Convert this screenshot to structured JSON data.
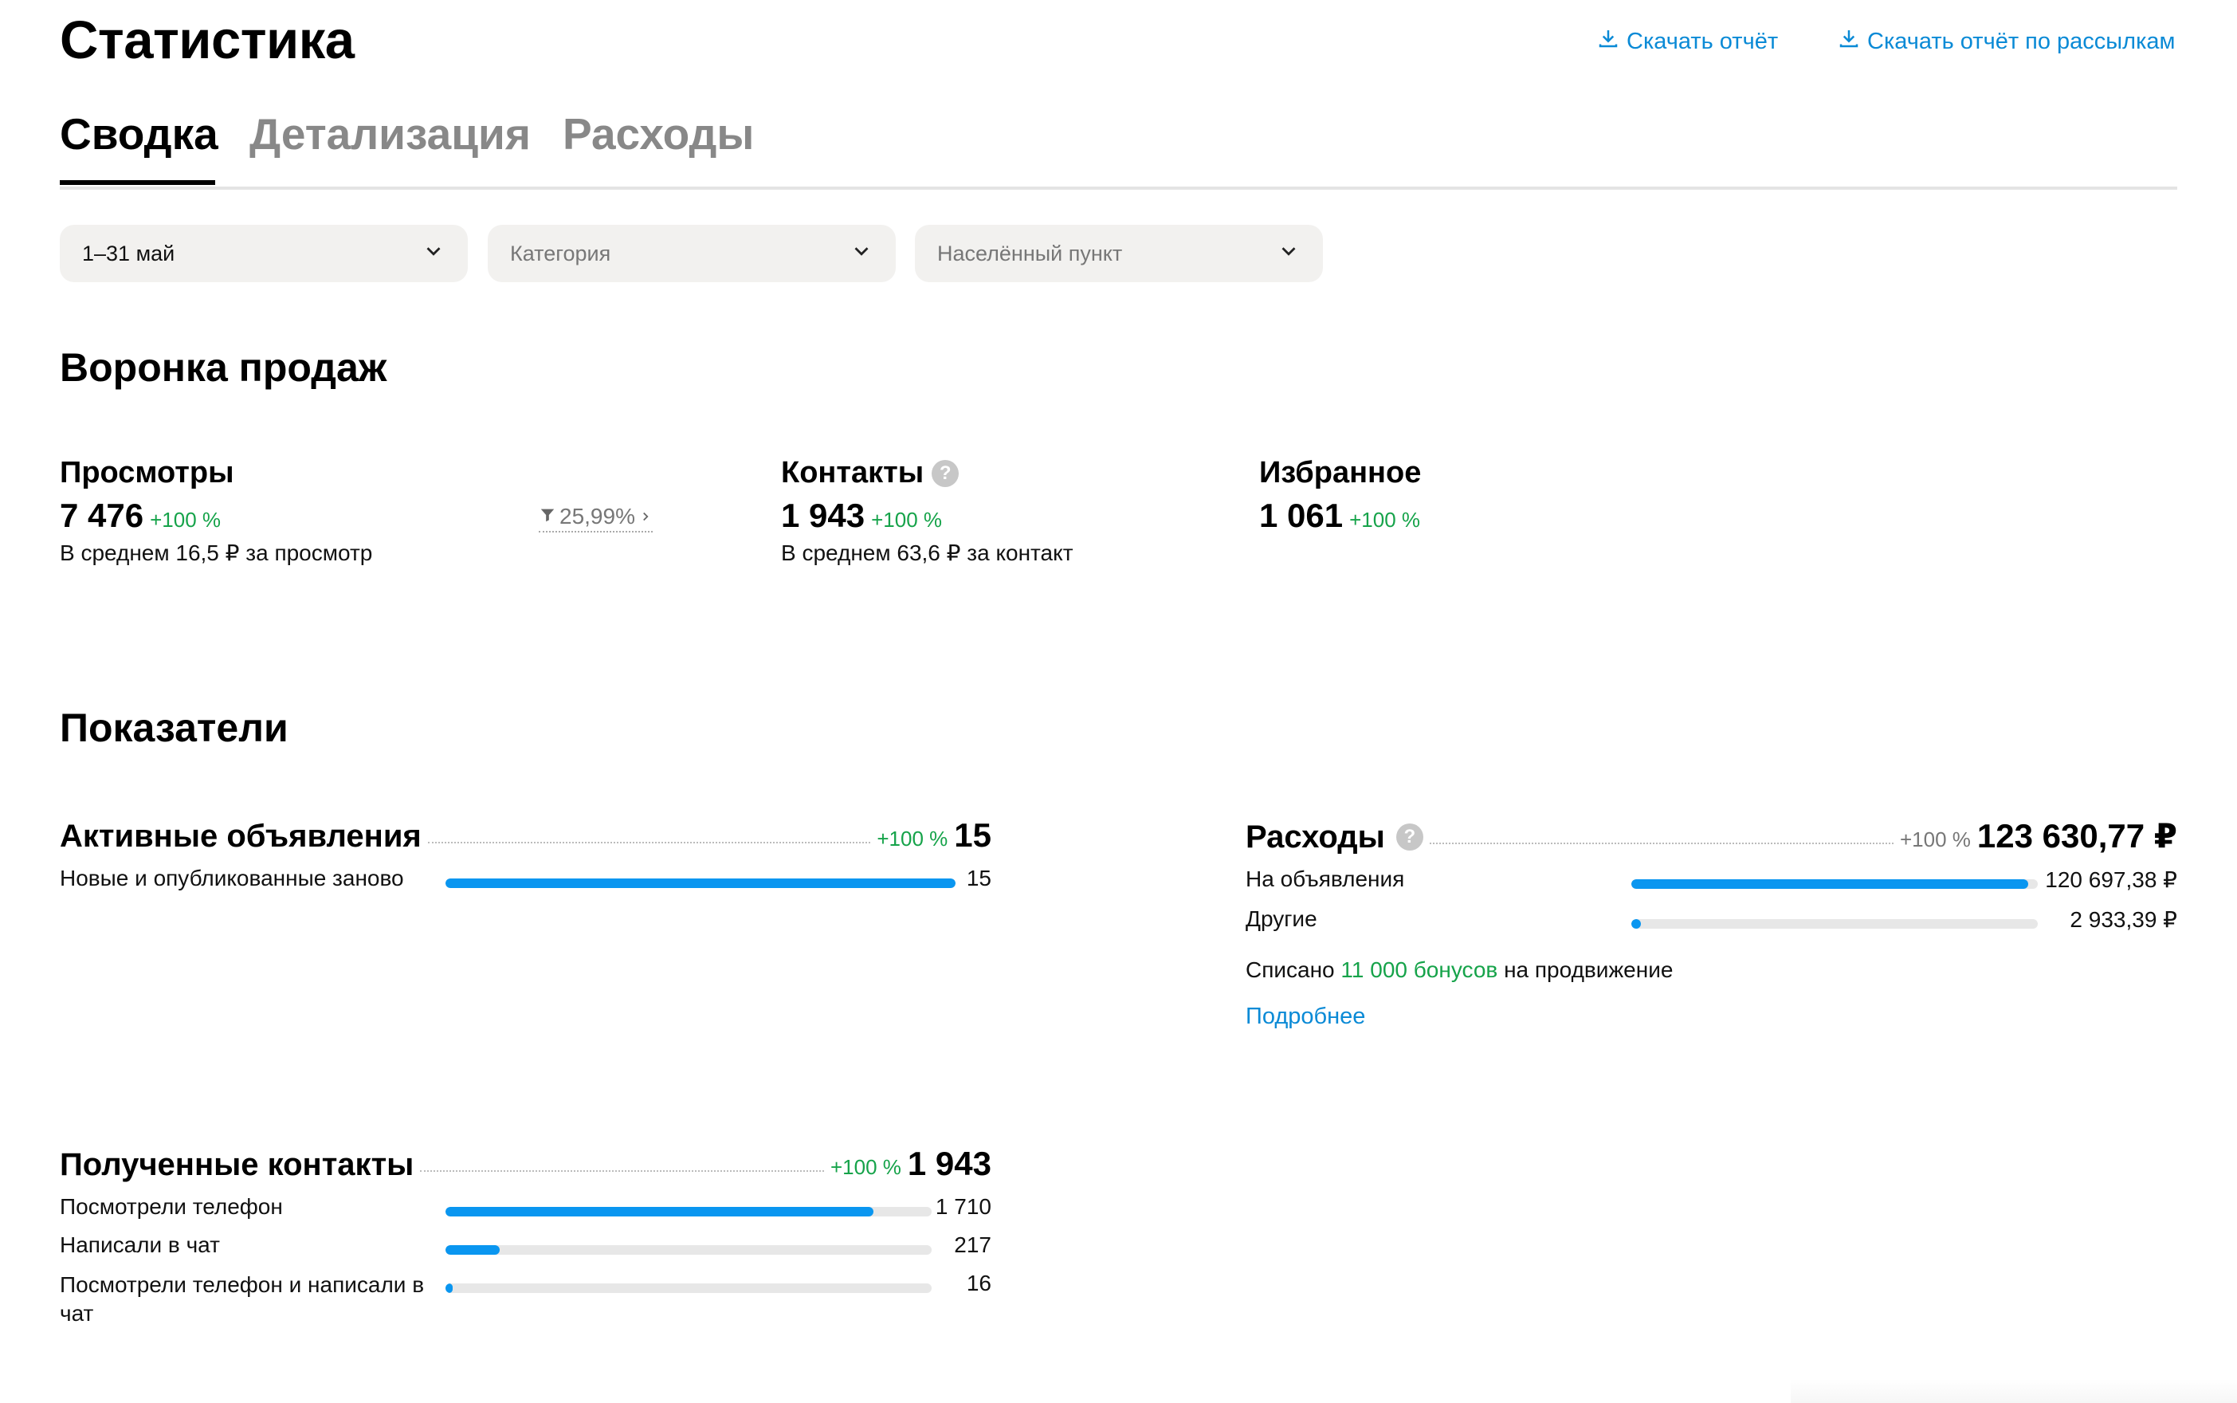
{
  "header": {
    "title": "Статистика",
    "download_report": "Скачать отчёт",
    "download_mailing_report": "Скачать отчёт по рассылкам"
  },
  "tabs": [
    {
      "label": "Сводка",
      "active": true
    },
    {
      "label": "Детализация",
      "active": false
    },
    {
      "label": "Расходы",
      "active": false
    }
  ],
  "filters": {
    "period": "1–31 май",
    "category_placeholder": "Категория",
    "city_placeholder": "Населённый пункт"
  },
  "funnel": {
    "title": "Воронка продаж",
    "views": {
      "label": "Просмотры",
      "value": "7 476",
      "growth": "+100 %",
      "sub": "В среднем 16,5 ₽ за просмотр"
    },
    "conversion": "25,99%",
    "contacts": {
      "label": "Контакты",
      "value": "1 943",
      "growth": "+100 %",
      "sub": "В среднем 63,6 ₽ за контакт"
    },
    "favorites": {
      "label": "Избранное",
      "value": "1 061",
      "growth": "+100 %"
    }
  },
  "indicators": {
    "title": "Показатели",
    "active_ads": {
      "title": "Активные объявления",
      "growth": "+100 %",
      "value": "15",
      "rows": [
        {
          "label": "Новые и опубликованные заново",
          "value": "15",
          "fraction": 1.0
        }
      ]
    },
    "expenses": {
      "title": "Расходы",
      "growth": "+100 %",
      "value": "123 630,77 ₽",
      "rows": [
        {
          "label": "На объявления",
          "value": "120 697,38 ₽",
          "fraction": 0.976
        },
        {
          "label": "Другие",
          "value": "2 933,39 ₽",
          "fraction": 0.024
        }
      ],
      "note_prefix": "Списано",
      "note_bonus": "11 000 бонусов",
      "note_suffix": "на продвижение",
      "more_link": "Подробнее"
    },
    "contacts": {
      "title": "Полученные контакты",
      "growth": "+100 %",
      "value": "1 943",
      "rows": [
        {
          "label": "Посмотрели телефон",
          "value": "1 710",
          "fraction": 0.88
        },
        {
          "label": "Написали в чат",
          "value": "217",
          "fraction": 0.112
        },
        {
          "label": "Посмотрели телефон и написали в чат",
          "value": "16",
          "fraction": 0.008
        }
      ]
    }
  },
  "colors": {
    "accent": "#0a96f0",
    "link": "#0a8ad6",
    "growth": "#16a34a"
  }
}
